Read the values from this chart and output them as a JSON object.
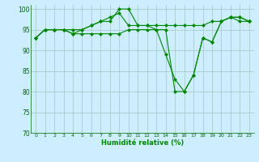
{
  "xlabel": "Humidité relative (%)",
  "background_color": "#cceeff",
  "grid_color": "#aacccc",
  "line_color": "#008800",
  "marker_color": "#008800",
  "ylim": [
    70,
    101
  ],
  "yticks": [
    70,
    75,
    80,
    85,
    90,
    95,
    100
  ],
  "xlim": [
    -0.5,
    23.5
  ],
  "xticks": [
    0,
    1,
    2,
    3,
    4,
    5,
    6,
    7,
    8,
    9,
    10,
    11,
    12,
    13,
    14,
    15,
    16,
    17,
    18,
    19,
    20,
    21,
    22,
    23
  ],
  "series1": [
    93,
    95,
    95,
    95,
    94,
    95,
    96,
    97,
    97,
    100,
    100,
    96,
    96,
    96,
    96,
    96,
    96,
    96,
    96,
    97,
    97,
    98,
    97,
    97
  ],
  "series2": [
    93,
    95,
    95,
    95,
    95,
    95,
    96,
    97,
    98,
    99,
    96,
    96,
    96,
    95,
    89,
    83,
    80,
    84,
    93,
    92,
    97,
    98,
    98,
    97
  ],
  "series3": [
    93,
    95,
    95,
    95,
    94,
    94,
    94,
    94,
    94,
    94,
    95,
    95,
    95,
    95,
    95,
    80,
    80,
    84,
    93,
    92,
    97,
    98,
    98,
    97
  ]
}
